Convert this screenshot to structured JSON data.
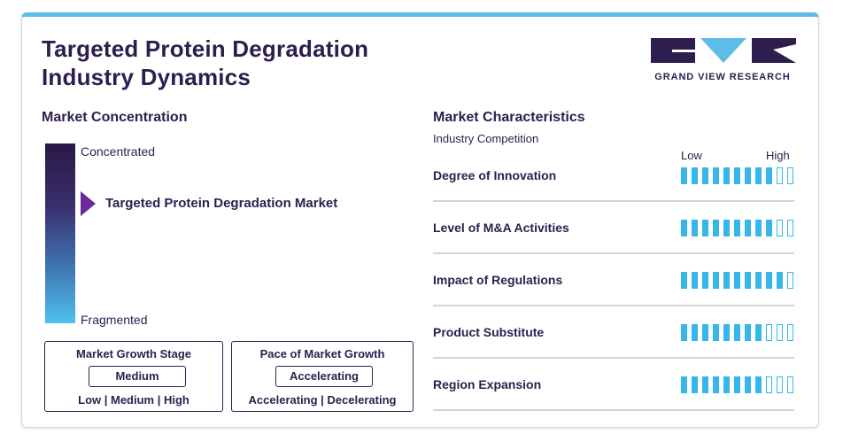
{
  "header": {
    "title_line1": "Targeted Protein Degradation",
    "title_line2": "Industry Dynamics",
    "logo_text": "GRAND VIEW RESEARCH"
  },
  "concentration": {
    "heading": "Market Concentration",
    "top_label": "Concentrated",
    "bottom_label": "Fragmented",
    "marker_label": "Targeted Protein Degradation Market",
    "marker_level": 0.32
  },
  "growth_stage": {
    "title": "Market Growth Stage",
    "value": "Medium",
    "scale": "Low | Medium | High"
  },
  "growth_pace": {
    "title": "Pace of Market Growth",
    "value": "Accelerating",
    "scale": "Accelerating | Decelerating"
  },
  "characteristics": {
    "heading": "Market Characteristics",
    "subheading": "Industry Competition",
    "low_label": "Low",
    "high_label": "High",
    "total_segments": 11,
    "rows": [
      {
        "label": "Degree of Innovation",
        "filled": 9
      },
      {
        "label": "Level of M&A Activities",
        "filled": 9
      },
      {
        "label": "Impact of Regulations",
        "filled": 10
      },
      {
        "label": "Product Substitute",
        "filled": 8
      },
      {
        "label": "Region Expansion",
        "filled": 8
      }
    ]
  },
  "colors": {
    "accent_blue": "#36b6ea",
    "dark_purple": "#2e1d4f",
    "pointer_purple": "#6b2a9a"
  }
}
